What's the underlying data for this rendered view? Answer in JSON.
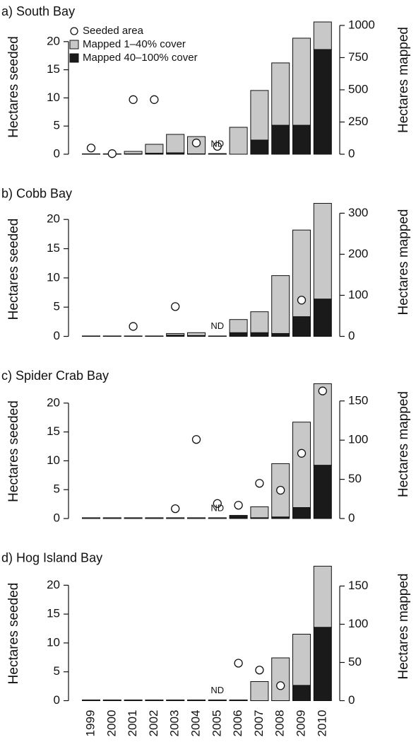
{
  "chart_data": [
    {
      "type": "bar",
      "title": "a) South Bay",
      "y_label": "Hectares seeded",
      "y2_label": "Hectares mapped",
      "ylim": [
        0,
        24.5
      ],
      "yticks": [
        0,
        5,
        10,
        15,
        20
      ],
      "y2lim": [
        0,
        1071
      ],
      "y2ticks": [
        0,
        250,
        500,
        750,
        1000
      ],
      "legend": "upper left",
      "annotation": {
        "text": "ND",
        "x": "2005"
      },
      "series": [
        {
          "name": "Seeded area",
          "type": "scatter",
          "color": "#ffffff",
          "values": [
            1.1,
            0.1,
            9.7,
            9.7,
            null,
            2.0,
            1.4,
            null,
            null,
            null,
            null,
            null
          ]
        },
        {
          "name": "Mapped 1–40% cover",
          "color": "#c8c8c8",
          "axis": "y2",
          "values": [
            3,
            3,
            19,
            69,
            143,
            134,
            5,
            209,
            385,
            484,
            676,
            214
          ]
        },
        {
          "name": "Mapped 40–100% cover",
          "color": "#1a1a1a",
          "axis": "y2",
          "values": [
            0,
            0,
            3,
            8,
            11,
            3,
            0,
            0,
            110,
            225,
            225,
            813
          ]
        }
      ]
    },
    {
      "type": "bar",
      "title": "b) Cobb Bay",
      "y_label": "Hectares seeded",
      "y2_label": "Hectares mapped",
      "ylim": [
        0,
        23.6
      ],
      "yticks": [
        0,
        5,
        10,
        15,
        20
      ],
      "y2lim": [
        0,
        336
      ],
      "y2ticks": [
        0,
        100,
        200,
        300
      ],
      "annotation": {
        "text": "ND",
        "x": "2005"
      },
      "series": [
        {
          "type": "scatter",
          "color": "#ffffff",
          "values": [
            null,
            null,
            1.7,
            null,
            5.1,
            null,
            null,
            null,
            null,
            null,
            6.2,
            null
          ]
        },
        {
          "color": "#c8c8c8",
          "axis": "y2",
          "values": [
            1,
            1,
            1,
            1,
            4,
            7,
            1,
            32,
            51,
            141,
            211,
            233
          ]
        },
        {
          "color": "#1a1a1a",
          "axis": "y2",
          "values": [
            0,
            0,
            0,
            0,
            3,
            2,
            0,
            9,
            9,
            7,
            48,
            91
          ]
        }
      ]
    },
    {
      "type": "bar",
      "title": "c) Spider Crab Bay",
      "y_label": "Hectares seeded",
      "y2_label": "Hectares mapped",
      "ylim": [
        0,
        23.9
      ],
      "yticks": [
        0,
        5,
        10,
        15,
        20
      ],
      "y2lim": [
        0,
        176
      ],
      "y2ticks": [
        0,
        50,
        100,
        150
      ],
      "annotation": {
        "text": "ND",
        "x": "2005"
      },
      "series": [
        {
          "type": "scatter",
          "color": "#ffffff",
          "values": [
            null,
            null,
            null,
            null,
            1.7,
            13.7,
            2.6,
            2.3,
            6.1,
            4.9,
            11.3,
            22.1
          ]
        },
        {
          "color": "#c8c8c8",
          "axis": "y2",
          "values": [
            1,
            1,
            1,
            1,
            1,
            1,
            1,
            1,
            14,
            68,
            109,
            104
          ]
        },
        {
          "color": "#1a1a1a",
          "axis": "y2",
          "values": [
            0,
            0,
            0,
            0,
            0,
            0,
            0,
            3,
            1,
            2,
            14,
            68
          ]
        }
      ]
    },
    {
      "type": "bar",
      "title": "d) Hog Island Bay",
      "y_label": "Hectares seeded",
      "y2_label": "Hectares mapped",
      "ylim": [
        0,
        23.9
      ],
      "yticks": [
        0,
        5,
        10,
        15,
        20
      ],
      "y2lim": [
        0,
        180.5
      ],
      "y2ticks": [
        0,
        50,
        100,
        150
      ],
      "annotation": {
        "text": "ND",
        "x": "2005"
      },
      "categories": [
        "1999",
        "2000",
        "2001",
        "2002",
        "2003",
        "2004",
        "2005",
        "2006",
        "2007",
        "2008",
        "2009",
        "2010"
      ],
      "series": [
        {
          "type": "scatter",
          "color": "#ffffff",
          "values": [
            null,
            null,
            null,
            null,
            null,
            null,
            null,
            6.5,
            5.3,
            2.6,
            null,
            null
          ]
        },
        {
          "color": "#c8c8c8",
          "axis": "y2",
          "values": [
            1,
            1,
            1,
            1,
            1,
            1,
            1,
            1,
            25,
            56,
            67,
            80
          ]
        },
        {
          "color": "#1a1a1a",
          "axis": "y2",
          "values": [
            0,
            0,
            0,
            0,
            0,
            0,
            0,
            0,
            0,
            0,
            20,
            96
          ]
        }
      ]
    }
  ]
}
